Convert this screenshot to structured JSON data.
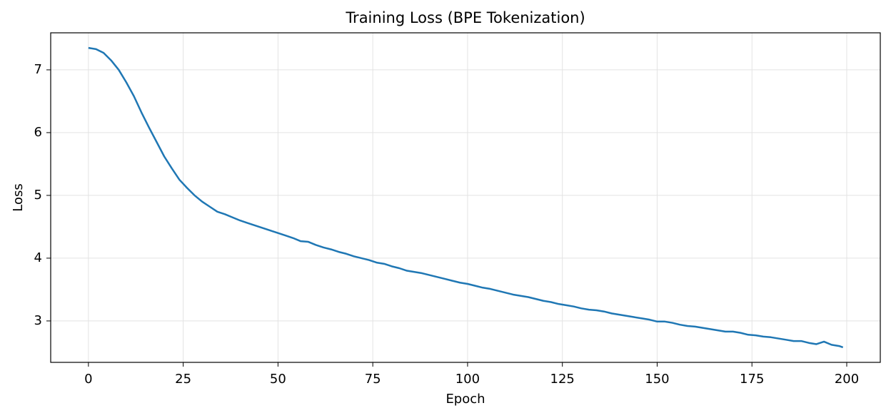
{
  "chart_data": {
    "type": "line",
    "title": "Training Loss (BPE Tokenization)",
    "x_label": "Epoch",
    "y_label": "Loss",
    "x": [
      0,
      2,
      4,
      6,
      8,
      10,
      12,
      14,
      16,
      18,
      20,
      22,
      24,
      26,
      28,
      30,
      32,
      34,
      36,
      38,
      40,
      42,
      44,
      46,
      48,
      50,
      52,
      54,
      56,
      58,
      60,
      62,
      64,
      66,
      68,
      70,
      72,
      74,
      76,
      78,
      80,
      82,
      84,
      86,
      88,
      90,
      92,
      94,
      96,
      98,
      100,
      102,
      104,
      106,
      108,
      110,
      112,
      114,
      116,
      118,
      120,
      122,
      124,
      126,
      128,
      130,
      132,
      134,
      136,
      138,
      140,
      142,
      144,
      146,
      148,
      150,
      152,
      154,
      156,
      158,
      160,
      162,
      164,
      166,
      168,
      170,
      172,
      174,
      176,
      178,
      180,
      182,
      184,
      186,
      188,
      190,
      192,
      194,
      196,
      198,
      199
    ],
    "series": [
      {
        "name": "Loss",
        "color": "#1f77b4",
        "values": [
          7.35,
          7.33,
          7.27,
          7.15,
          7.0,
          6.8,
          6.58,
          6.32,
          6.08,
          5.85,
          5.62,
          5.43,
          5.25,
          5.12,
          5.0,
          4.9,
          4.82,
          4.74,
          4.7,
          4.65,
          4.6,
          4.56,
          4.52,
          4.48,
          4.44,
          4.4,
          4.36,
          4.32,
          4.27,
          4.26,
          4.21,
          4.17,
          4.14,
          4.1,
          4.07,
          4.03,
          4.0,
          3.97,
          3.93,
          3.91,
          3.87,
          3.84,
          3.8,
          3.78,
          3.76,
          3.73,
          3.7,
          3.67,
          3.64,
          3.61,
          3.59,
          3.56,
          3.53,
          3.51,
          3.48,
          3.45,
          3.42,
          3.4,
          3.38,
          3.35,
          3.32,
          3.3,
          3.27,
          3.25,
          3.23,
          3.2,
          3.18,
          3.17,
          3.15,
          3.12,
          3.1,
          3.08,
          3.06,
          3.04,
          3.02,
          2.99,
          2.99,
          2.97,
          2.94,
          2.92,
          2.91,
          2.89,
          2.87,
          2.85,
          2.83,
          2.83,
          2.81,
          2.78,
          2.77,
          2.75,
          2.74,
          2.72,
          2.7,
          2.68,
          2.68,
          2.65,
          2.63,
          2.67,
          2.62,
          2.6,
          2.58
        ]
      }
    ],
    "xlim": [
      -9.95,
      208.85
    ],
    "ylim": [
      2.34,
      7.59
    ],
    "xticks": [
      0,
      25,
      50,
      75,
      100,
      125,
      150,
      175,
      200
    ],
    "yticks": [
      3,
      4,
      5,
      6,
      7
    ],
    "grid": true
  }
}
